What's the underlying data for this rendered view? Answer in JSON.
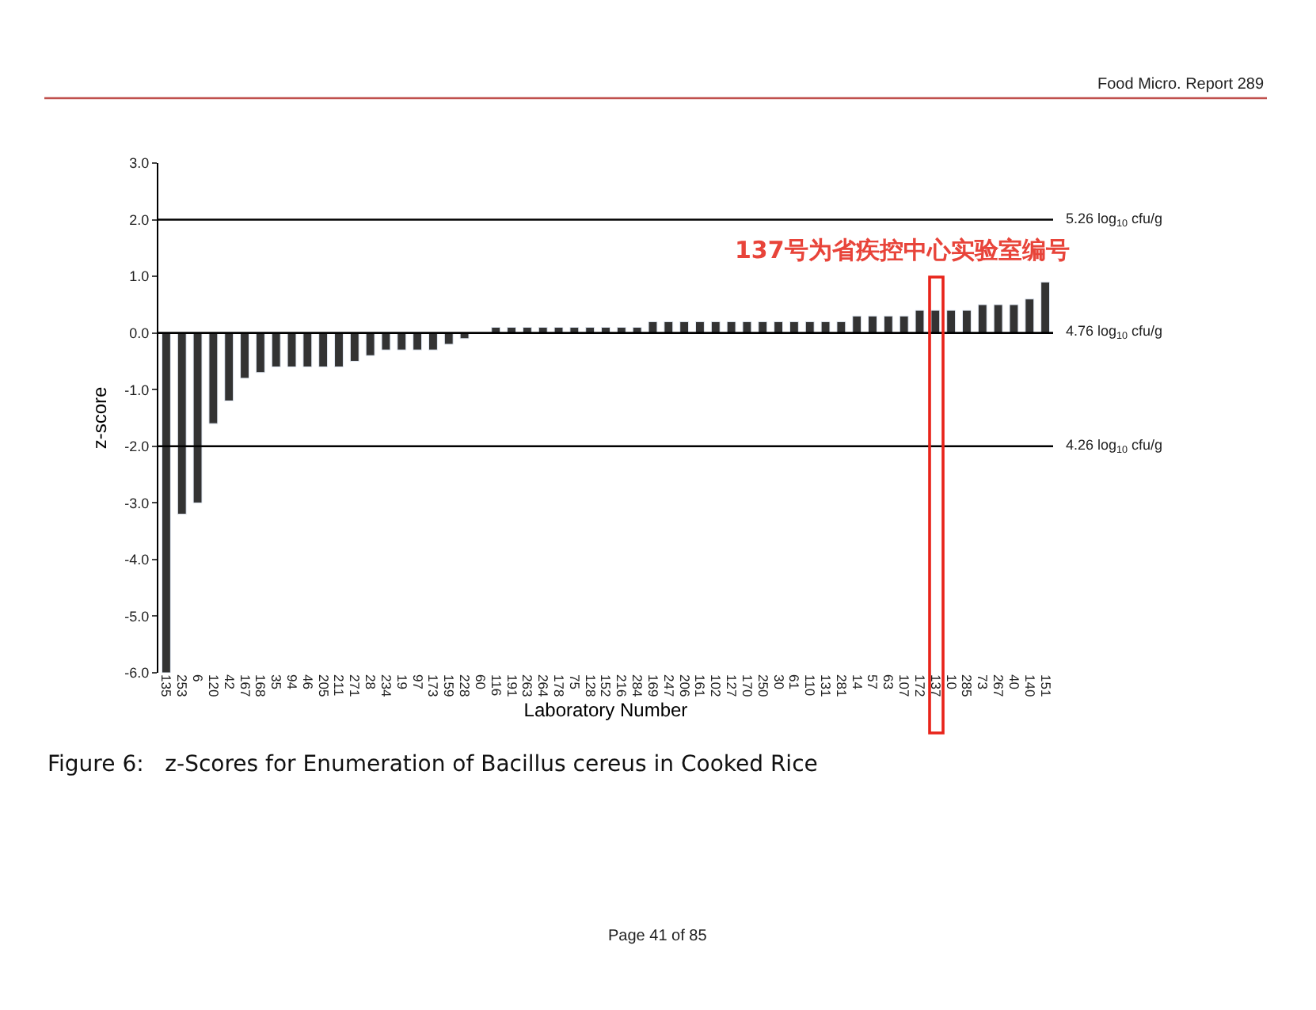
{
  "chart_data": {
    "type": "bar",
    "title": "Figure 6:   z-Scores for Enumeration of Bacillus cereus in Cooked Rice",
    "xlabel": "Laboratory Number",
    "ylabel": "z-score",
    "categories": [
      "135",
      "253",
      "6",
      "120",
      "42",
      "167",
      "168",
      "35",
      "94",
      "46",
      "205",
      "211",
      "271",
      "28",
      "234",
      "19",
      "97",
      "173",
      "159",
      "228",
      "60",
      "116",
      "191",
      "263",
      "264",
      "178",
      "75",
      "128",
      "152",
      "216",
      "284",
      "169",
      "247",
      "206",
      "161",
      "102",
      "127",
      "170",
      "250",
      "30",
      "61",
      "110",
      "131",
      "281",
      "14",
      "57",
      "63",
      "107",
      "172",
      "137",
      "10",
      "285",
      "73",
      "267",
      "40",
      "140",
      "151"
    ],
    "values": [
      -6.0,
      -3.2,
      -3.0,
      -1.6,
      -1.2,
      -0.8,
      -0.7,
      -0.6,
      -0.6,
      -0.6,
      -0.6,
      -0.6,
      -0.5,
      -0.4,
      -0.3,
      -0.3,
      -0.3,
      -0.3,
      -0.2,
      -0.1,
      null,
      0.1,
      0.1,
      0.1,
      0.1,
      0.1,
      0.1,
      0.1,
      0.1,
      0.1,
      0.1,
      0.2,
      0.2,
      0.2,
      0.2,
      0.2,
      0.2,
      0.2,
      0.2,
      0.2,
      0.2,
      0.2,
      0.2,
      0.2,
      0.3,
      0.3,
      0.3,
      0.3,
      0.4,
      0.4,
      0.4,
      0.4,
      0.5,
      0.5,
      0.5,
      0.6,
      0.9
    ],
    "color": "#333333",
    "ylim": [
      -6,
      3
    ],
    "yticks": [
      {
        "value": -6,
        "label": "-6.0"
      },
      {
        "value": -5,
        "label": "-5.0"
      },
      {
        "value": -4,
        "label": "-4.0"
      },
      {
        "value": -3,
        "label": "-3.0"
      },
      {
        "value": -2,
        "label": "-2.0"
      },
      {
        "value": -1,
        "label": "-1.0"
      },
      {
        "value": 0,
        "label": "0.0"
      },
      {
        "value": 1,
        "label": "1.0"
      },
      {
        "value": 2,
        "label": "2.0"
      },
      {
        "value": 3,
        "label": "3.0"
      }
    ],
    "ref_lines": [
      {
        "axis": "y",
        "value": 2,
        "label": "5.26 log$_{10}$ cfu/g",
        "color": "#000000"
      },
      {
        "axis": "y",
        "value": 0,
        "label": "4.76 log$_{10}$ cfu/g",
        "color": "#000000"
      },
      {
        "axis": "y",
        "value": -2,
        "label": "4.26 log$_{10}$ cfu/g",
        "color": "#000000"
      }
    ],
    "annotations": [
      "Food Micro. Report 289",
      "137号为省疾控中心实验室编号",
      "Page 41 of 85"
    ],
    "grid": false
  }
}
